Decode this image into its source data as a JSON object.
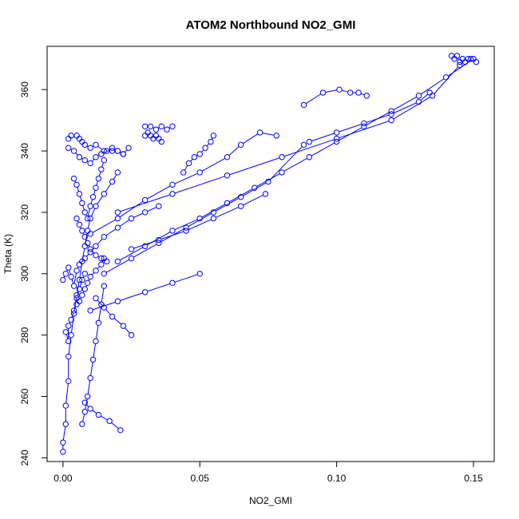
{
  "chart_data": {
    "type": "line",
    "title": "ATOM2 Northbound NO2_GMI",
    "xlabel": "NO2_GMI",
    "ylabel": "Theta (K)",
    "xlim": [
      -0.0058,
      0.1576
    ],
    "ylim": [
      238.8,
      374.1
    ],
    "x_ticks": [
      0.0,
      0.05,
      0.1,
      0.15
    ],
    "x_tick_labels": [
      "0.00",
      "0.05",
      "0.10",
      "0.15"
    ],
    "y_ticks": [
      240,
      260,
      280,
      300,
      320,
      340,
      360
    ],
    "y_tick_labels": [
      "240",
      "260",
      "280",
      "300",
      "320",
      "340",
      "360"
    ],
    "marker": "open-circle",
    "color": "#0000ff",
    "grid": false,
    "series": [
      {
        "x": [
          0.0,
          0.0,
          0.001,
          0.001,
          0.002,
          0.002,
          0.003,
          0.004,
          0.005,
          0.006,
          0.007,
          0.008,
          0.009,
          0.01,
          0.012,
          0.015,
          0.018,
          0.02
        ],
        "y": [
          242,
          245,
          251,
          257,
          265,
          273,
          280,
          287,
          293,
          298,
          304,
          309,
          314,
          318,
          322,
          326,
          330,
          333
        ]
      },
      {
        "x": [
          0.0,
          0.001,
          0.002,
          0.003,
          0.004,
          0.005,
          0.006,
          0.008,
          0.01,
          0.012,
          0.015,
          0.02,
          0.025,
          0.03,
          0.035
        ],
        "y": [
          298,
          300,
          302,
          299,
          296,
          301,
          303,
          305,
          307,
          309,
          312,
          315,
          318,
          320,
          322
        ]
      },
      {
        "x": [
          0.002,
          0.003,
          0.005,
          0.006,
          0.007,
          0.008,
          0.01,
          0.012,
          0.015,
          0.018,
          0.02,
          0.022
        ],
        "y": [
          344,
          345,
          345,
          344,
          343,
          342,
          341,
          342,
          340,
          340,
          340,
          339
        ]
      },
      {
        "x": [
          0.002,
          0.004,
          0.006,
          0.008,
          0.01,
          0.012,
          0.014,
          0.016,
          0.018,
          0.02,
          0.022,
          0.024
        ],
        "y": [
          341,
          340,
          338,
          337,
          336,
          338,
          339,
          340,
          341,
          340,
          339,
          341
        ]
      },
      {
        "x": [
          0.004,
          0.005,
          0.006,
          0.007,
          0.008,
          0.009,
          0.01,
          0.011,
          0.012,
          0.013,
          0.014,
          0.015
        ],
        "y": [
          331,
          329,
          326,
          323,
          320,
          318,
          322,
          325,
          328,
          331,
          334,
          337
        ]
      },
      {
        "x": [
          0.005,
          0.006,
          0.007,
          0.008,
          0.009,
          0.01,
          0.012,
          0.014,
          0.016
        ],
        "y": [
          318,
          316,
          314,
          312,
          310,
          308,
          306,
          305,
          304
        ]
      },
      {
        "x": [
          0.006,
          0.007,
          0.008,
          0.009,
          0.01,
          0.012,
          0.014,
          0.015
        ],
        "y": [
          291,
          293,
          295,
          297,
          299,
          301,
          303,
          305
        ]
      },
      {
        "x": [
          0.007,
          0.008,
          0.009,
          0.01,
          0.011,
          0.012,
          0.013,
          0.014,
          0.015
        ],
        "y": [
          251,
          255,
          260,
          266,
          272,
          278,
          284,
          290,
          296
        ]
      },
      {
        "x": [
          0.001,
          0.002,
          0.002,
          0.003,
          0.004,
          0.005,
          0.005,
          0.006,
          0.007,
          0.008
        ],
        "y": [
          281,
          278,
          283,
          285,
          288,
          290,
          292,
          295,
          298,
          300
        ]
      },
      {
        "x": [
          0.03,
          0.032,
          0.034,
          0.036,
          0.038,
          0.04
        ],
        "y": [
          348,
          348,
          347,
          348,
          347,
          348
        ]
      },
      {
        "x": [
          0.03,
          0.031,
          0.032,
          0.033,
          0.034,
          0.035,
          0.036
        ],
        "y": [
          345,
          346,
          345,
          344,
          345,
          344,
          343
        ]
      },
      {
        "x": [
          0.044,
          0.046,
          0.048,
          0.05,
          0.052,
          0.054,
          0.055
        ],
        "y": [
          333,
          336,
          338,
          339,
          341,
          343,
          345
        ]
      },
      {
        "x": [
          0.02,
          0.03,
          0.04,
          0.05,
          0.06,
          0.07,
          0.08,
          0.09,
          0.1,
          0.11,
          0.12,
          0.13,
          0.14,
          0.15
        ],
        "y": [
          304,
          309,
          314,
          318,
          323,
          328,
          333,
          338,
          343,
          348,
          353,
          358,
          364,
          370
        ]
      },
      {
        "x": [
          0.015,
          0.025,
          0.035,
          0.045,
          0.055,
          0.065,
          0.075,
          0.088
        ],
        "y": [
          300,
          305,
          310,
          315,
          320,
          325,
          330,
          342
        ]
      },
      {
        "x": [
          0.088,
          0.095,
          0.101,
          0.105,
          0.108,
          0.111
        ],
        "y": [
          355,
          359,
          360,
          359,
          359,
          358
        ]
      },
      {
        "x": [
          0.01,
          0.02,
          0.03,
          0.04,
          0.05,
          0.06,
          0.065,
          0.072,
          0.078
        ],
        "y": [
          313,
          318,
          324,
          329,
          333,
          338,
          342,
          346,
          345
        ]
      },
      {
        "x": [
          0.142,
          0.143,
          0.144,
          0.145,
          0.146,
          0.147,
          0.148,
          0.149,
          0.151
        ],
        "y": [
          371,
          370,
          371,
          369,
          370,
          369,
          370,
          370,
          369
        ]
      },
      {
        "x": [
          0.02,
          0.04,
          0.06,
          0.08,
          0.1,
          0.12,
          0.135,
          0.145
        ],
        "y": [
          320,
          326,
          332,
          338,
          344,
          350,
          358,
          368
        ]
      },
      {
        "x": [
          0.134,
          0.13,
          0.12,
          0.11,
          0.1,
          0.09
        ],
        "y": [
          359,
          356,
          352,
          349,
          346,
          343
        ]
      },
      {
        "x": [
          0.05,
          0.04,
          0.03,
          0.02,
          0.01
        ],
        "y": [
          300,
          297,
          294,
          291,
          288
        ]
      },
      {
        "x": [
          0.025,
          0.022,
          0.018,
          0.015,
          0.012
        ],
        "y": [
          280,
          283,
          286,
          289,
          292
        ]
      },
      {
        "x": [
          0.021,
          0.017,
          0.013,
          0.01,
          0.008
        ],
        "y": [
          249,
          252,
          254,
          256,
          258
        ]
      },
      {
        "x": [
          0.074,
          0.065,
          0.055,
          0.045,
          0.035,
          0.025
        ],
        "y": [
          326,
          322,
          318,
          314,
          311,
          308
        ]
      }
    ]
  }
}
